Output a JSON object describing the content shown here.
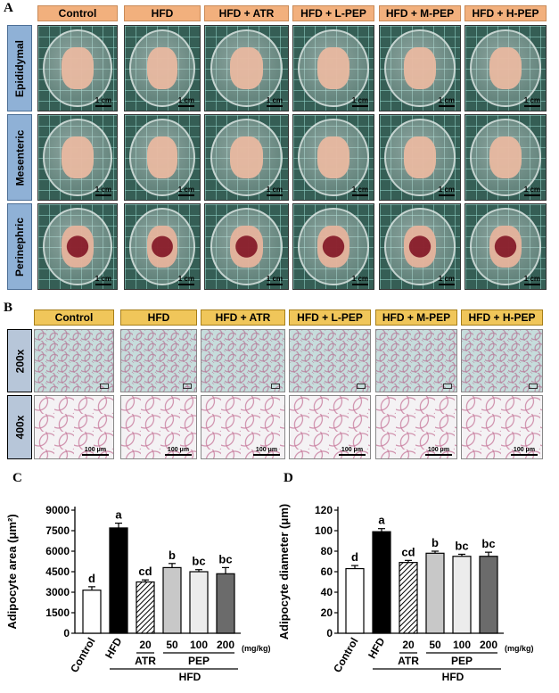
{
  "panels": {
    "a": "A",
    "b": "B",
    "c": "C",
    "d": "D"
  },
  "groups": [
    "Control",
    "HFD",
    "HFD + ATR",
    "HFD + L-PEP",
    "HFD + M-PEP",
    "HFD + H-PEP"
  ],
  "panel_a": {
    "rows": [
      "Epididymal",
      "Mesenteric",
      "Perinephric"
    ],
    "scale_label": "1 cm"
  },
  "panel_b": {
    "rows": [
      "200x",
      "400x"
    ],
    "scale_200": "",
    "scale_400": "100 μm"
  },
  "chart_data": [
    {
      "type": "bar",
      "ylabel": "Adipocyte area (μm²)",
      "ylim": [
        0,
        9000
      ],
      "yticks": [
        "0",
        "1500",
        "3000",
        "4500",
        "6000",
        "7500",
        "9000"
      ],
      "categories": [
        "Control",
        "HFD",
        "20",
        "50",
        "100",
        "200"
      ],
      "values": [
        3150,
        7700,
        3750,
        4800,
        4500,
        4350
      ],
      "errors": [
        250,
        350,
        150,
        300,
        150,
        450
      ],
      "letters": [
        "d",
        "a",
        "cd",
        "b",
        "bc",
        "bc"
      ],
      "group_labels": {
        "atr": "ATR",
        "pep": "PEP",
        "hfd": "HFD",
        "unit": "(mg/kg)"
      }
    },
    {
      "type": "bar",
      "ylabel": "Adipocyte diameter (μm)",
      "ylim": [
        0,
        120
      ],
      "yticks": [
        "0",
        "20",
        "40",
        "60",
        "80",
        "100",
        "120"
      ],
      "categories": [
        "Control",
        "HFD",
        "20",
        "50",
        "100",
        "200"
      ],
      "values": [
        63,
        99,
        69,
        78,
        75,
        75
      ],
      "errors": [
        3,
        3,
        2,
        2,
        2,
        4
      ],
      "letters": [
        "d",
        "a",
        "cd",
        "b",
        "bc",
        "bc"
      ],
      "group_labels": {
        "atr": "ATR",
        "pep": "PEP",
        "hfd": "HFD",
        "unit": "(mg/kg)"
      }
    }
  ],
  "colors": {
    "header_a": "#f2b07d",
    "header_b": "#f0c65a",
    "row_label_a": "#8fb1d6",
    "bar_fills": [
      "#ffffff",
      "#000000",
      "hatch",
      "#c8c8c8",
      "#ececec",
      "#6b6b6b"
    ]
  }
}
